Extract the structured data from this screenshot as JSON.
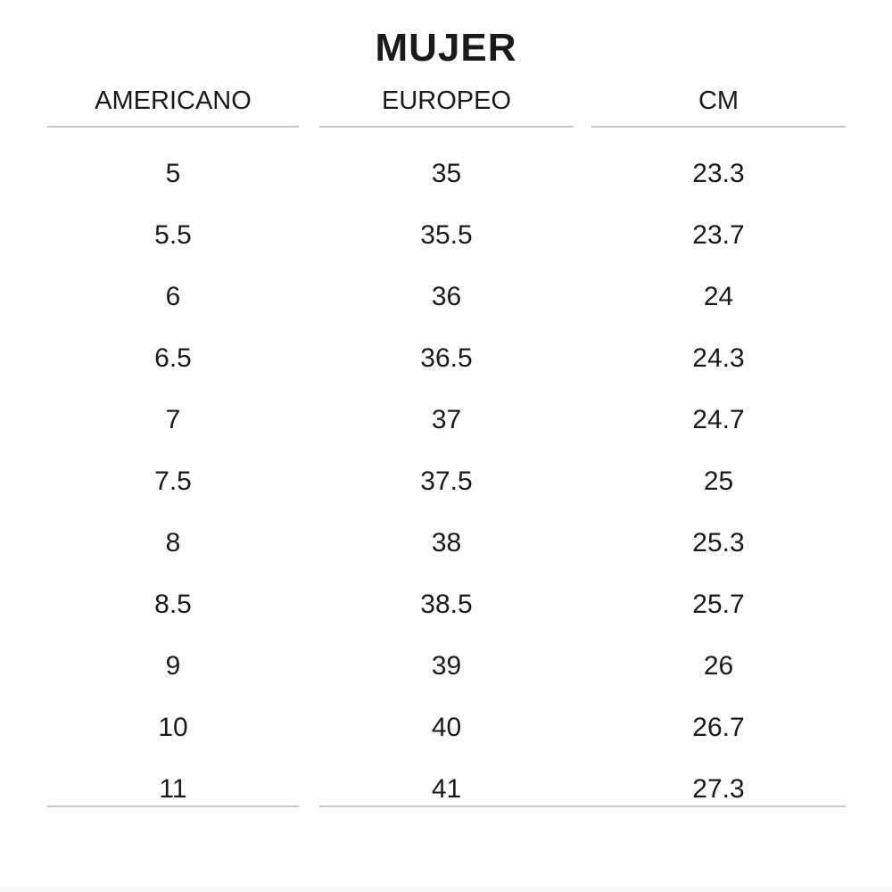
{
  "title": "MUJER",
  "chart_data": {
    "type": "table",
    "title": "MUJER",
    "columns": [
      "AMERICANO",
      "EUROPEO",
      "CM"
    ],
    "rows": [
      [
        "5",
        "35",
        "23.3"
      ],
      [
        "5.5",
        "35.5",
        "23.7"
      ],
      [
        "6",
        "36",
        "24"
      ],
      [
        "6.5",
        "36.5",
        "24.3"
      ],
      [
        "7",
        "37",
        "24.7"
      ],
      [
        "7.5",
        "37.5",
        "25"
      ],
      [
        "8",
        "38",
        "25.3"
      ],
      [
        "8.5",
        "38.5",
        "25.7"
      ],
      [
        "9",
        "39",
        "26"
      ],
      [
        "10",
        "40",
        "26.7"
      ],
      [
        "11",
        "41",
        "27.3"
      ]
    ],
    "layout": {
      "header_underline": "per-column",
      "bottom_rule": "segment under column 1, continuous segment under columns 2-3",
      "grid": "off"
    }
  },
  "colors": {
    "text": "#1a1a1a",
    "rule": "#c7c7c7",
    "background": "#ffffff",
    "footer_strip": "#f7f7f7"
  }
}
